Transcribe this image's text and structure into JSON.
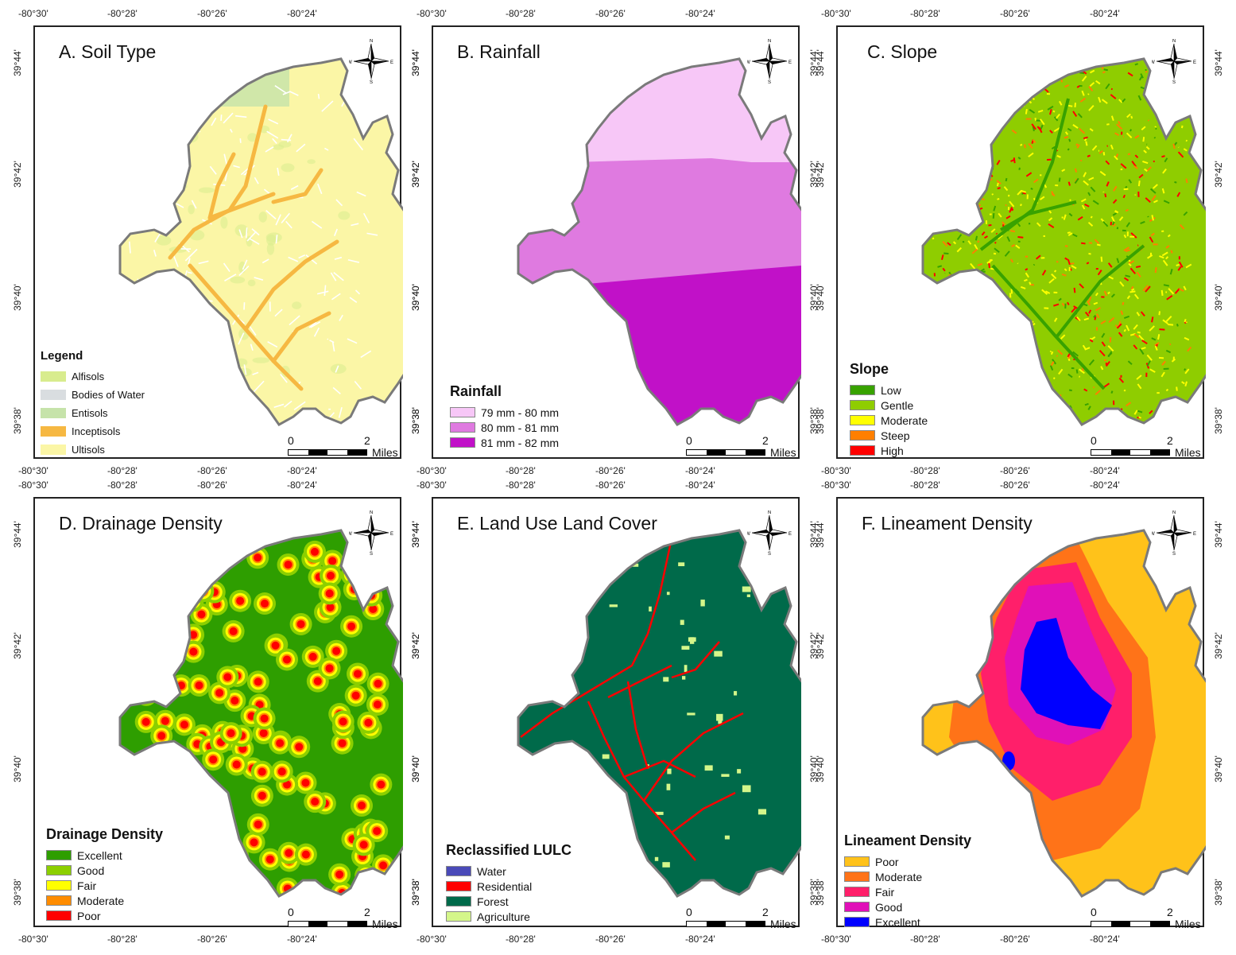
{
  "ticks": {
    "lon": [
      "-80°30'",
      "-80°28'",
      "-80°26'",
      "-80°24'"
    ],
    "lat": [
      "39°44'",
      "39°42'",
      "39°40'",
      "39°38'"
    ]
  },
  "scale": {
    "zero": "0",
    "two": "2",
    "units": "Miles"
  },
  "compass": {
    "n": "N",
    "s": "S",
    "e": "E",
    "w": "W"
  },
  "panels": [
    {
      "id": "A",
      "title": "A. Soil Type",
      "legend_title": "Legend",
      "legend": [
        {
          "label": "Alfisols",
          "color": "#d8ec8e"
        },
        {
          "label": "Bodies of Water",
          "color": "#d9dde0"
        },
        {
          "label": "Entisols",
          "color": "#c6e3aa"
        },
        {
          "label": "Inceptisols",
          "color": "#f6b842"
        },
        {
          "label": "Ultisols",
          "color": "#fbf6a6"
        }
      ]
    },
    {
      "id": "B",
      "title": "B. Rainfall",
      "legend_title": "Rainfall",
      "legend": [
        {
          "label": "79 mm - 80 mm",
          "color": "#f7c7f7"
        },
        {
          "label": "80 mm - 81 mm",
          "color": "#df7ae0"
        },
        {
          "label": "81 mm - 82 mm",
          "color": "#c111c8"
        }
      ]
    },
    {
      "id": "C",
      "title": "C. Slope",
      "legend_title": "Slope",
      "legend": [
        {
          "label": "Low",
          "color": "#38a200"
        },
        {
          "label": "Gentle",
          "color": "#8fcd00"
        },
        {
          "label": "Moderate",
          "color": "#ffff00"
        },
        {
          "label": "Steep",
          "color": "#ff7f00"
        },
        {
          "label": "High",
          "color": "#ff0000"
        }
      ]
    },
    {
      "id": "D",
      "title": "D. Drainage Density",
      "legend_title": "Drainage Density",
      "legend": [
        {
          "label": "Excellent",
          "color": "#2e9e00"
        },
        {
          "label": "Good",
          "color": "#8ccf00"
        },
        {
          "label": "Fair",
          "color": "#ffff00"
        },
        {
          "label": "Moderate",
          "color": "#ff8c00"
        },
        {
          "label": "Poor",
          "color": "#ff0000"
        }
      ]
    },
    {
      "id": "E",
      "title": "E. Land Use Land Cover",
      "legend_title": "Reclassified LULC",
      "legend": [
        {
          "label": "Water",
          "color": "#4a4ab8"
        },
        {
          "label": "Residential",
          "color": "#ff0000"
        },
        {
          "label": "Forest",
          "color": "#006a4a"
        },
        {
          "label": "Agriculture",
          "color": "#d4f68a"
        }
      ]
    },
    {
      "id": "F",
      "title": "F. Lineament Density",
      "legend_title": "Lineament Density",
      "legend": [
        {
          "label": "Poor",
          "color": "#ffc21a"
        },
        {
          "label": "Moderate",
          "color": "#ff7318"
        },
        {
          "label": "Fair",
          "color": "#ff1f6a"
        },
        {
          "label": "Good",
          "color": "#e010b8"
        },
        {
          "label": "Excellent",
          "color": "#0000ff"
        }
      ]
    }
  ]
}
